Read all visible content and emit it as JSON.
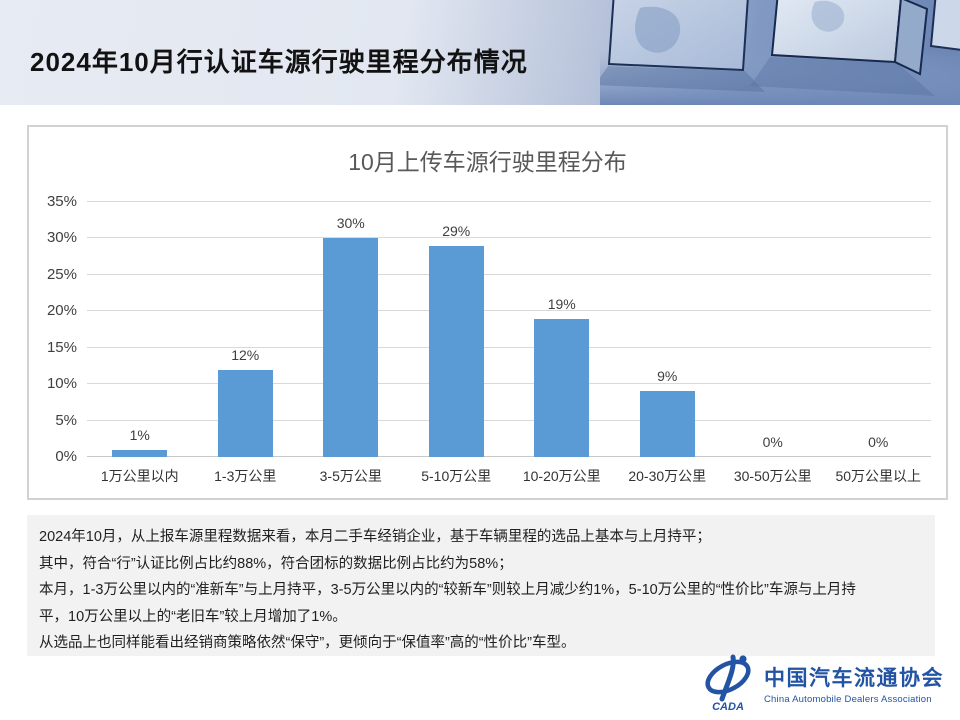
{
  "header": {
    "title": "2024年10月行认证车源行驶里程分布情况"
  },
  "chart_data": {
    "type": "bar",
    "title": "10月上传车源行驶里程分布",
    "categories": [
      "1万公里以内",
      "1-3万公里",
      "3-5万公里",
      "5-10万公里",
      "10-20万公里",
      "20-30万公里",
      "30-50万公里",
      "50万公里以上"
    ],
    "values": [
      1,
      12,
      30,
      29,
      19,
      9,
      0,
      0
    ],
    "value_labels": [
      "1%",
      "12%",
      "30%",
      "29%",
      "19%",
      "9%",
      "0%",
      "0%"
    ],
    "xlabel": "",
    "ylabel": "",
    "ylim": [
      0,
      35
    ],
    "ytick_step": 5,
    "ytick_labels": [
      "0%",
      "5%",
      "10%",
      "15%",
      "20%",
      "25%",
      "30%",
      "35%"
    ],
    "grid": true,
    "legend": false,
    "bar_color": "#5b9bd5"
  },
  "summary": {
    "lines": [
      "2024年10月，从上报车源里程数据来看，本月二手车经销企业，基于车辆里程的选品上基本与上月持平；",
      "其中，符合“行”认证比例占比约88%，符合团标的数据比例占比约为58%；",
      "本月，1-3万公里以内的“准新车”与上月持平，3-5万公里以内的“较新车”则较上月减少约1%，5-10万公里的“性价比”车源与上月持",
      "平，10万公里以上的“老旧车”较上月增加了1%。",
      "从选品上也同样能看出经销商策略依然“保守”，更倾向于“保值率”高的“性价比”车型。"
    ]
  },
  "footer": {
    "logo_mark_text": "CADA",
    "logo_text_cn": "中国汽车流通协会",
    "logo_text_en": "China Automobile Dealers Association",
    "logo_color": "#2353a4"
  },
  "colors": {
    "bar": "#5b9bd5",
    "gridline": "#d9d9d9",
    "chart_title": "#595959",
    "summary_bg": "#f2f2f2",
    "header_gradient_left": "#e7ebf3",
    "header_gradient_right": "#6a84b4"
  }
}
